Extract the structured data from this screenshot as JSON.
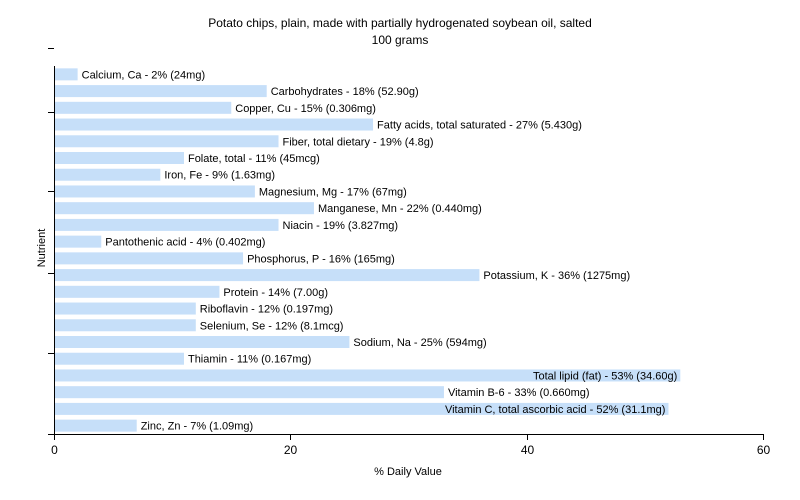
{
  "chart_data": {
    "type": "bar",
    "orientation": "horizontal",
    "title": "Potato chips, plain, made with partially hydrogenated soybean oil, salted",
    "subtitle": "100 grams",
    "xlabel": "% Daily Value",
    "ylabel": "Nutrient",
    "xlim": [
      0,
      60
    ],
    "xticks": [
      0,
      20,
      40,
      60
    ],
    "grid": false,
    "bar_color": "#c6dff9",
    "categories": [
      "Calcium, Ca",
      "Carbohydrates",
      "Copper, Cu",
      "Fatty acids, total saturated",
      "Fiber, total dietary",
      "Folate, total",
      "Iron, Fe",
      "Magnesium, Mg",
      "Manganese, Mn",
      "Niacin",
      "Pantothenic acid",
      "Phosphorus, P",
      "Potassium, K",
      "Protein",
      "Riboflavin",
      "Selenium, Se",
      "Sodium, Na",
      "Thiamin",
      "Total lipid (fat)",
      "Vitamin B-6",
      "Vitamin C, total ascorbic acid",
      "Zinc, Zn"
    ],
    "values": [
      2,
      18,
      15,
      27,
      19,
      11,
      9,
      17,
      22,
      19,
      4,
      16,
      36,
      14,
      12,
      12,
      25,
      11,
      53,
      33,
      52,
      7
    ],
    "labels": [
      "Calcium, Ca - 2% (24mg)",
      "Carbohydrates - 18% (52.90g)",
      "Copper, Cu - 15% (0.306mg)",
      "Fatty acids, total saturated - 27% (5.430g)",
      "Fiber, total dietary - 19% (4.8g)",
      "Folate, total - 11% (45mcg)",
      "Iron, Fe - 9% (1.63mg)",
      "Magnesium, Mg - 17% (67mg)",
      "Manganese, Mn - 22% (0.440mg)",
      "Niacin - 19% (3.827mg)",
      "Pantothenic acid - 4% (0.402mg)",
      "Phosphorus, P - 16% (165mg)",
      "Potassium, K - 36% (1275mg)",
      "Protein - 14% (7.00g)",
      "Riboflavin - 12% (0.197mg)",
      "Selenium, Se - 12% (8.1mcg)",
      "Sodium, Na - 25% (594mg)",
      "Thiamin - 11% (0.167mg)",
      "Total lipid (fat) - 53% (34.60g)",
      "Vitamin B-6 - 33% (0.660mg)",
      "Vitamin C, total ascorbic acid - 52% (31.1mg)",
      "Zinc, Zn - 7% (1.09mg)"
    ]
  }
}
